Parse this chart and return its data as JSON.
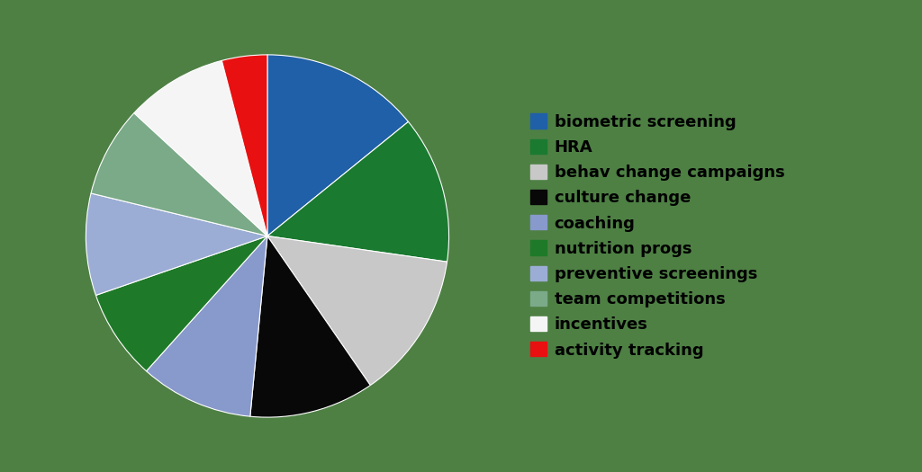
{
  "labels": [
    "biometric screening",
    "HRA",
    "behav change campaigns",
    "culture change",
    "coaching",
    "nutrition progs",
    "preventive screenings",
    "team competitions",
    "incentives",
    "activity tracking"
  ],
  "sizes": [
    14,
    13,
    13,
    11,
    10,
    8,
    9,
    8,
    9,
    4
  ],
  "colors": [
    "#2060a8",
    "#1a7a30",
    "#c8c8c8",
    "#080808",
    "#8899cc",
    "#1e7a28",
    "#9badd4",
    "#7aaa88",
    "#f5f5f5",
    "#e81010"
  ],
  "background_color": "#4e8044",
  "legend_fontsize": 13,
  "startangle": 90
}
